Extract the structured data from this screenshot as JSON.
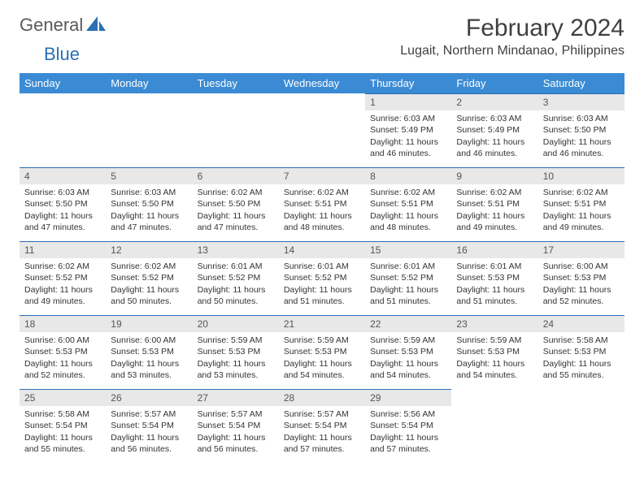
{
  "logo": {
    "text1": "General",
    "text2": "Blue",
    "shape_color": "#2a6fb5"
  },
  "title": "February 2024",
  "location": "Lugait, Northern Mindanao, Philippines",
  "colors": {
    "header_bg": "#3b8bd4",
    "header_text": "#ffffff",
    "daynum_bg": "#e8e8e8",
    "daynum_border": "#2a6fb5",
    "body_text": "#333333"
  },
  "weekdays": [
    "Sunday",
    "Monday",
    "Tuesday",
    "Wednesday",
    "Thursday",
    "Friday",
    "Saturday"
  ],
  "weeks": [
    [
      null,
      null,
      null,
      null,
      {
        "n": "1",
        "sr": "Sunrise: 6:03 AM",
        "ss": "Sunset: 5:49 PM",
        "d1": "Daylight: 11 hours",
        "d2": "and 46 minutes."
      },
      {
        "n": "2",
        "sr": "Sunrise: 6:03 AM",
        "ss": "Sunset: 5:49 PM",
        "d1": "Daylight: 11 hours",
        "d2": "and 46 minutes."
      },
      {
        "n": "3",
        "sr": "Sunrise: 6:03 AM",
        "ss": "Sunset: 5:50 PM",
        "d1": "Daylight: 11 hours",
        "d2": "and 46 minutes."
      }
    ],
    [
      {
        "n": "4",
        "sr": "Sunrise: 6:03 AM",
        "ss": "Sunset: 5:50 PM",
        "d1": "Daylight: 11 hours",
        "d2": "and 47 minutes."
      },
      {
        "n": "5",
        "sr": "Sunrise: 6:03 AM",
        "ss": "Sunset: 5:50 PM",
        "d1": "Daylight: 11 hours",
        "d2": "and 47 minutes."
      },
      {
        "n": "6",
        "sr": "Sunrise: 6:02 AM",
        "ss": "Sunset: 5:50 PM",
        "d1": "Daylight: 11 hours",
        "d2": "and 47 minutes."
      },
      {
        "n": "7",
        "sr": "Sunrise: 6:02 AM",
        "ss": "Sunset: 5:51 PM",
        "d1": "Daylight: 11 hours",
        "d2": "and 48 minutes."
      },
      {
        "n": "8",
        "sr": "Sunrise: 6:02 AM",
        "ss": "Sunset: 5:51 PM",
        "d1": "Daylight: 11 hours",
        "d2": "and 48 minutes."
      },
      {
        "n": "9",
        "sr": "Sunrise: 6:02 AM",
        "ss": "Sunset: 5:51 PM",
        "d1": "Daylight: 11 hours",
        "d2": "and 49 minutes."
      },
      {
        "n": "10",
        "sr": "Sunrise: 6:02 AM",
        "ss": "Sunset: 5:51 PM",
        "d1": "Daylight: 11 hours",
        "d2": "and 49 minutes."
      }
    ],
    [
      {
        "n": "11",
        "sr": "Sunrise: 6:02 AM",
        "ss": "Sunset: 5:52 PM",
        "d1": "Daylight: 11 hours",
        "d2": "and 49 minutes."
      },
      {
        "n": "12",
        "sr": "Sunrise: 6:02 AM",
        "ss": "Sunset: 5:52 PM",
        "d1": "Daylight: 11 hours",
        "d2": "and 50 minutes."
      },
      {
        "n": "13",
        "sr": "Sunrise: 6:01 AM",
        "ss": "Sunset: 5:52 PM",
        "d1": "Daylight: 11 hours",
        "d2": "and 50 minutes."
      },
      {
        "n": "14",
        "sr": "Sunrise: 6:01 AM",
        "ss": "Sunset: 5:52 PM",
        "d1": "Daylight: 11 hours",
        "d2": "and 51 minutes."
      },
      {
        "n": "15",
        "sr": "Sunrise: 6:01 AM",
        "ss": "Sunset: 5:52 PM",
        "d1": "Daylight: 11 hours",
        "d2": "and 51 minutes."
      },
      {
        "n": "16",
        "sr": "Sunrise: 6:01 AM",
        "ss": "Sunset: 5:53 PM",
        "d1": "Daylight: 11 hours",
        "d2": "and 51 minutes."
      },
      {
        "n": "17",
        "sr": "Sunrise: 6:00 AM",
        "ss": "Sunset: 5:53 PM",
        "d1": "Daylight: 11 hours",
        "d2": "and 52 minutes."
      }
    ],
    [
      {
        "n": "18",
        "sr": "Sunrise: 6:00 AM",
        "ss": "Sunset: 5:53 PM",
        "d1": "Daylight: 11 hours",
        "d2": "and 52 minutes."
      },
      {
        "n": "19",
        "sr": "Sunrise: 6:00 AM",
        "ss": "Sunset: 5:53 PM",
        "d1": "Daylight: 11 hours",
        "d2": "and 53 minutes."
      },
      {
        "n": "20",
        "sr": "Sunrise: 5:59 AM",
        "ss": "Sunset: 5:53 PM",
        "d1": "Daylight: 11 hours",
        "d2": "and 53 minutes."
      },
      {
        "n": "21",
        "sr": "Sunrise: 5:59 AM",
        "ss": "Sunset: 5:53 PM",
        "d1": "Daylight: 11 hours",
        "d2": "and 54 minutes."
      },
      {
        "n": "22",
        "sr": "Sunrise: 5:59 AM",
        "ss": "Sunset: 5:53 PM",
        "d1": "Daylight: 11 hours",
        "d2": "and 54 minutes."
      },
      {
        "n": "23",
        "sr": "Sunrise: 5:59 AM",
        "ss": "Sunset: 5:53 PM",
        "d1": "Daylight: 11 hours",
        "d2": "and 54 minutes."
      },
      {
        "n": "24",
        "sr": "Sunrise: 5:58 AM",
        "ss": "Sunset: 5:53 PM",
        "d1": "Daylight: 11 hours",
        "d2": "and 55 minutes."
      }
    ],
    [
      {
        "n": "25",
        "sr": "Sunrise: 5:58 AM",
        "ss": "Sunset: 5:54 PM",
        "d1": "Daylight: 11 hours",
        "d2": "and 55 minutes."
      },
      {
        "n": "26",
        "sr": "Sunrise: 5:57 AM",
        "ss": "Sunset: 5:54 PM",
        "d1": "Daylight: 11 hours",
        "d2": "and 56 minutes."
      },
      {
        "n": "27",
        "sr": "Sunrise: 5:57 AM",
        "ss": "Sunset: 5:54 PM",
        "d1": "Daylight: 11 hours",
        "d2": "and 56 minutes."
      },
      {
        "n": "28",
        "sr": "Sunrise: 5:57 AM",
        "ss": "Sunset: 5:54 PM",
        "d1": "Daylight: 11 hours",
        "d2": "and 57 minutes."
      },
      {
        "n": "29",
        "sr": "Sunrise: 5:56 AM",
        "ss": "Sunset: 5:54 PM",
        "d1": "Daylight: 11 hours",
        "d2": "and 57 minutes."
      },
      null,
      null
    ]
  ]
}
